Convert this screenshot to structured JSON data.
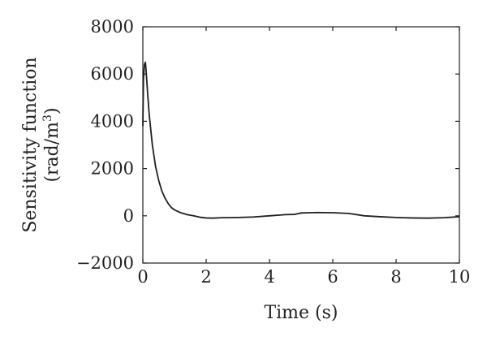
{
  "chart_data": {
    "type": "line",
    "title": "",
    "xlabel": "Time (s)",
    "ylabel_line1": "Sensitivity function",
    "ylabel_line2_prefix": "(rad/m",
    "ylabel_line2_sup": "3",
    "ylabel_line2_suffix": ")",
    "xlim": [
      0,
      10
    ],
    "ylim": [
      -2000,
      8000
    ],
    "xticks": [
      0,
      2,
      4,
      6,
      8,
      10
    ],
    "yticks": [
      -2000,
      0,
      2000,
      4000,
      6000,
      8000
    ],
    "xtick_labels": [
      "0",
      "2",
      "4",
      "6",
      "8",
      "10"
    ],
    "ytick_labels": [
      "−2000",
      "0",
      "2000",
      "4000",
      "6000",
      "8000"
    ],
    "grid": false,
    "series": [
      {
        "x": [
          0,
          0.02,
          0.05,
          0.08,
          0.1,
          0.15,
          0.2,
          0.3,
          0.4,
          0.5,
          0.6,
          0.7,
          0.8,
          0.9,
          1.0,
          1.2,
          1.4,
          1.6,
          1.8,
          2.0,
          2.2,
          2.5,
          3.0,
          3.5,
          4.0,
          4.5,
          4.8,
          5.0,
          5.5,
          6.0,
          6.5,
          7.0,
          7.5,
          8.0,
          8.5,
          9.0,
          9.5,
          10.0
        ],
        "y": [
          3800,
          5800,
          6400,
          6500,
          6200,
          5200,
          4300,
          3000,
          2100,
          1500,
          1050,
          750,
          520,
          350,
          250,
          130,
          50,
          0,
          -60,
          -90,
          -100,
          -80,
          -70,
          -50,
          0,
          50,
          60,
          120,
          140,
          130,
          100,
          0,
          -40,
          -70,
          -90,
          -100,
          -80,
          -40
        ]
      }
    ]
  }
}
